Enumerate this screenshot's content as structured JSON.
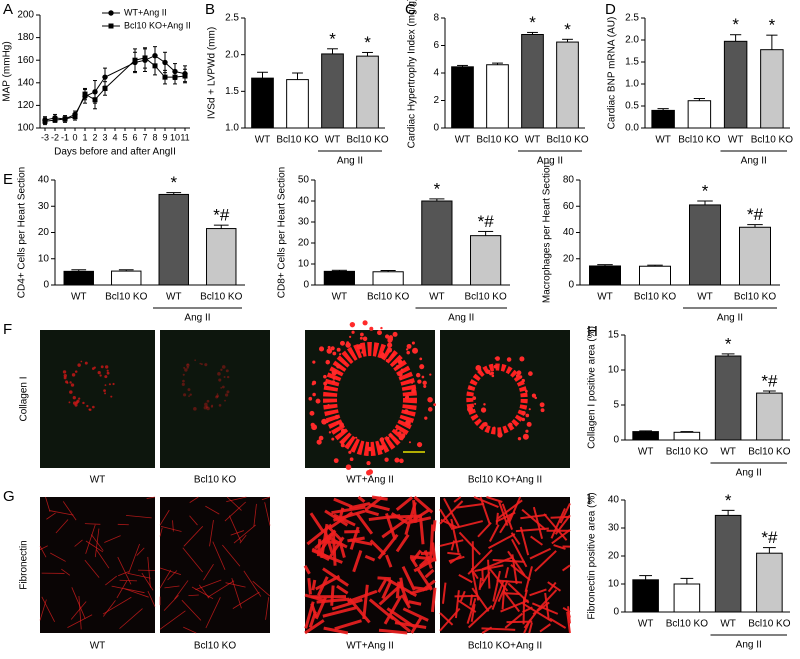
{
  "chart_data": [
    {
      "panel": "A",
      "type": "line",
      "y_label": "MAP (mmHg)",
      "x_label": "Days before and after AngII",
      "x": [
        -3,
        -2,
        -1,
        0,
        1,
        2,
        3,
        6,
        7,
        8,
        9,
        10,
        11
      ],
      "xlim": [
        -3.5,
        11.5
      ],
      "xticks": [
        -3,
        -2,
        -1,
        0,
        1,
        2,
        3,
        4,
        5,
        6,
        7,
        8,
        9,
        10,
        11
      ],
      "ylim": [
        100,
        200
      ],
      "yticks": [
        100,
        120,
        140,
        160,
        180,
        200
      ],
      "series": [
        {
          "name": "WT+Ang II",
          "color": "#000000",
          "marker": "circle",
          "values": [
            107,
            109,
            108,
            112,
            128,
            132,
            145,
            158,
            160,
            164,
            158,
            150,
            148
          ],
          "errors": [
            3,
            3,
            2,
            3,
            6,
            10,
            8,
            9,
            10,
            8,
            9,
            7,
            7
          ]
        },
        {
          "name": "Bcl10 KO+Ang II",
          "color": "#000000",
          "marker": "square",
          "values": [
            106,
            107,
            108,
            110,
            130,
            125,
            135,
            160,
            162,
            155,
            145,
            145,
            146
          ],
          "errors": [
            3,
            2,
            3,
            3,
            5,
            8,
            6,
            10,
            9,
            8,
            6,
            6,
            6
          ]
        }
      ]
    },
    {
      "panel": "B",
      "type": "bar",
      "y_label": "IVSd + LVPWd (mm)",
      "categories": [
        "WT",
        "Bcl10 KO",
        "WT",
        "Bcl10 KO"
      ],
      "group_label": "Ang II",
      "values": [
        1.68,
        1.66,
        2.01,
        1.98
      ],
      "errors": [
        0.08,
        0.09,
        0.07,
        0.05
      ],
      "annotations": [
        null,
        null,
        "*",
        "*"
      ],
      "colors": [
        "#000000",
        "#ffffff",
        "#555555",
        "#c8c8c8"
      ],
      "ylim": [
        1.0,
        2.5
      ],
      "yticks": [
        {
          "value": 1.0,
          "label": "1.0"
        },
        1.5,
        {
          "value": 2.0,
          "label": "2.0"
        },
        2.5
      ]
    },
    {
      "panel": "C",
      "type": "bar",
      "y_label": "Cardiac Hypertrophy Index (mg/g)",
      "categories": [
        "WT",
        "Bcl10 KO",
        "WT",
        "Bcl10 KO"
      ],
      "group_label": "Ang II",
      "values": [
        4.45,
        4.6,
        6.8,
        6.25
      ],
      "errors": [
        0.1,
        0.12,
        0.15,
        0.2
      ],
      "annotations": [
        null,
        null,
        "*",
        "*"
      ],
      "colors": [
        "#000000",
        "#ffffff",
        "#555555",
        "#c8c8c8"
      ],
      "ylim": [
        0,
        8
      ],
      "yticks": [
        0,
        2,
        4,
        6,
        8
      ]
    },
    {
      "panel": "D",
      "type": "bar",
      "y_label": "Cardiac BNP mRNA (AU)",
      "categories": [
        "WT",
        "Bcl10 KO",
        "WT",
        "Bcl10 KO"
      ],
      "group_label": "Ang II",
      "values": [
        0.4,
        0.62,
        1.97,
        1.78
      ],
      "errors": [
        0.04,
        0.05,
        0.15,
        0.33
      ],
      "annotations": [
        null,
        null,
        "*",
        "*"
      ],
      "colors": [
        "#000000",
        "#ffffff",
        "#555555",
        "#c8c8c8"
      ],
      "ylim": [
        0,
        2.5
      ],
      "yticks": [
        {
          "value": 0,
          "label": "0.0"
        },
        0.5,
        {
          "value": 1,
          "label": "1.0"
        },
        1.5,
        {
          "value": 2,
          "label": "2.0"
        },
        2.5
      ]
    },
    {
      "panel": "E",
      "type": "bar",
      "y_label": "CD4+ Cells per Heart Section",
      "categories": [
        "WT",
        "Bcl10 KO",
        "WT",
        "Bcl10 KO"
      ],
      "group_label": "Ang II",
      "values": [
        5.2,
        5.3,
        34.5,
        21.5
      ],
      "errors": [
        0.6,
        0.5,
        0.7,
        1.3
      ],
      "annotations": [
        null,
        null,
        "*",
        "*#"
      ],
      "colors": [
        "#000000",
        "#ffffff",
        "#555555",
        "#c8c8c8"
      ],
      "ylim": [
        0,
        40
      ],
      "yticks": [
        0,
        10,
        20,
        30,
        40
      ]
    },
    {
      "type": "bar",
      "y_label": "CD8+ Cells per Heart Section",
      "categories": [
        "WT",
        "Bcl10 KO",
        "WT",
        "Bcl10 KO"
      ],
      "group_label": "Ang II",
      "values": [
        6.5,
        6.3,
        40,
        23.5
      ],
      "errors": [
        0.5,
        0.6,
        1,
        2
      ],
      "annotations": [
        null,
        null,
        "*",
        "*#"
      ],
      "colors": [
        "#000000",
        "#ffffff",
        "#555555",
        "#c8c8c8"
      ],
      "ylim": [
        0,
        50
      ],
      "yticks": [
        0,
        10,
        20,
        30,
        40,
        50
      ]
    },
    {
      "type": "bar",
      "y_label": "Macrophages per Heart Section",
      "categories": [
        "WT",
        "Bcl10 KO",
        "WT",
        "Bcl10 KO"
      ],
      "group_label": "Ang II",
      "values": [
        14.5,
        14.3,
        61,
        44
      ],
      "errors": [
        1,
        0.8,
        3,
        2
      ],
      "annotations": [
        null,
        null,
        "*",
        "*#"
      ],
      "colors": [
        "#000000",
        "#ffffff",
        "#555555",
        "#c8c8c8"
      ],
      "ylim": [
        0,
        80
      ],
      "yticks": [
        0,
        20,
        40,
        60,
        80
      ]
    },
    {
      "panel": "H",
      "type": "bar",
      "y_label": "Collagen I positive area (%)",
      "categories": [
        "WT",
        "Bcl10 KO",
        "WT",
        "Bcl10 KO"
      ],
      "group_label": "Ang II",
      "values": [
        1.2,
        1.1,
        12,
        6.7
      ],
      "errors": [
        0.1,
        0.1,
        0.3,
        0.3
      ],
      "annotations": [
        null,
        null,
        "*",
        "*#"
      ],
      "colors": [
        "#000000",
        "#ffffff",
        "#555555",
        "#c8c8c8"
      ],
      "ylim": [
        0,
        15
      ],
      "yticks": [
        0,
        5,
        10,
        15
      ]
    },
    {
      "panel": "I",
      "type": "bar",
      "y_label": "Fibronectin positive area (%)",
      "categories": [
        "WT",
        "Bcl10 KO",
        "WT",
        "Bcl10 KO"
      ],
      "group_label": "Ang II",
      "values": [
        11.5,
        10,
        34.5,
        21
      ],
      "errors": [
        1.5,
        2,
        1.8,
        2
      ],
      "annotations": [
        null,
        null,
        "*",
        "*#"
      ],
      "colors": [
        "#000000",
        "#ffffff",
        "#555555",
        "#c8c8c8"
      ],
      "ylim": [
        0,
        40
      ],
      "yticks": [
        0,
        10,
        20,
        30,
        40
      ]
    }
  ],
  "micrographs": [
    {
      "panel": "F",
      "row_label": "Collagen I",
      "labels": [
        "WT",
        "Bcl10 KO",
        "WT+Ang II",
        "Bcl10 KO+Ang II"
      ]
    },
    {
      "panel": "G",
      "row_label": "Fibronectin",
      "labels": [
        "WT",
        "Bcl10 KO",
        "WT+Ang II",
        "Bcl10 KO+Ang II"
      ]
    }
  ]
}
